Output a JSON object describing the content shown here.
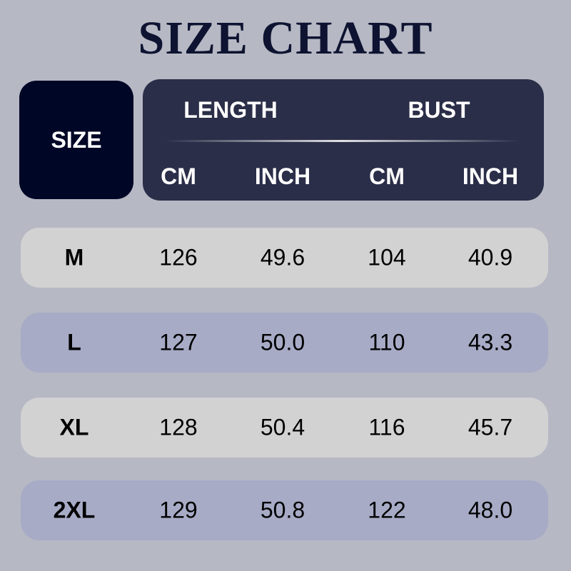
{
  "title": "SIZE CHART",
  "header": {
    "size_label": "SIZE",
    "groups": [
      "LENGTH",
      "BUST"
    ],
    "units": [
      "CM",
      "INCH",
      "CM",
      "INCH"
    ]
  },
  "rows": [
    {
      "size": "M",
      "values": [
        "126",
        "49.6",
        "104",
        "40.9"
      ]
    },
    {
      "size": "L",
      "values": [
        "127",
        "50.0",
        "110",
        "43.3"
      ]
    },
    {
      "size": "XL",
      "values": [
        "128",
        "50.4",
        "116",
        "45.7"
      ]
    },
    {
      "size": "2XL",
      "values": [
        "129",
        "50.8",
        "122",
        "48.0"
      ]
    }
  ],
  "colors": {
    "background": "#b6b8c4",
    "title": "#0d1330",
    "size_box": "#000626",
    "header": "#2b2e48",
    "row_light": "#d2d2d2",
    "row_blue": "#a7abc6"
  }
}
